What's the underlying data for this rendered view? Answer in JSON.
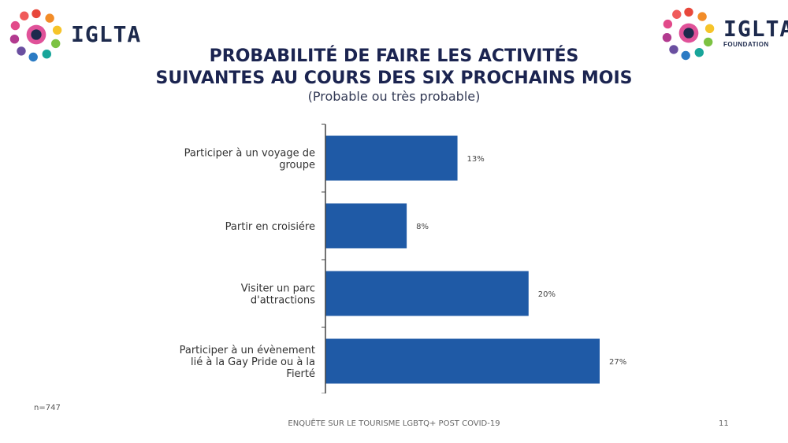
{
  "logos": {
    "left": {
      "word": "IGLTA",
      "sub": ""
    },
    "right": {
      "word": "IGLTA",
      "sub": "FOUNDATION"
    }
  },
  "header": {
    "title_line1": "PROBABILITÉ DE FAIRE LES ACTIVITÉS",
    "title_line2": "SUIVANTES AU COURS DES SIX PROCHAINS MOIS",
    "subtitle": "(Probable ou très probable)"
  },
  "chart_data": {
    "type": "bar",
    "orientation": "horizontal",
    "categories": [
      [
        "Participer à un voyage de",
        "groupe"
      ],
      [
        "Partir en croisiére"
      ],
      [
        "Visiter un parc",
        "d'attractions"
      ],
      [
        "Participer à un évènement",
        "lié à la Gay Pride ou à la",
        "Fierté"
      ]
    ],
    "values": [
      13,
      8,
      20,
      27
    ],
    "value_labels": [
      "13%",
      "8%",
      "20%",
      "27%"
    ],
    "xlim": [
      0,
      30
    ],
    "bar_color": "#1f5aa6",
    "grid": false,
    "legend": "none"
  },
  "footer": {
    "n": "n=747",
    "center": "ENQUÊTE SUR LE TOURISME LGBTQ+ POST COVID-19",
    "page": "11"
  }
}
